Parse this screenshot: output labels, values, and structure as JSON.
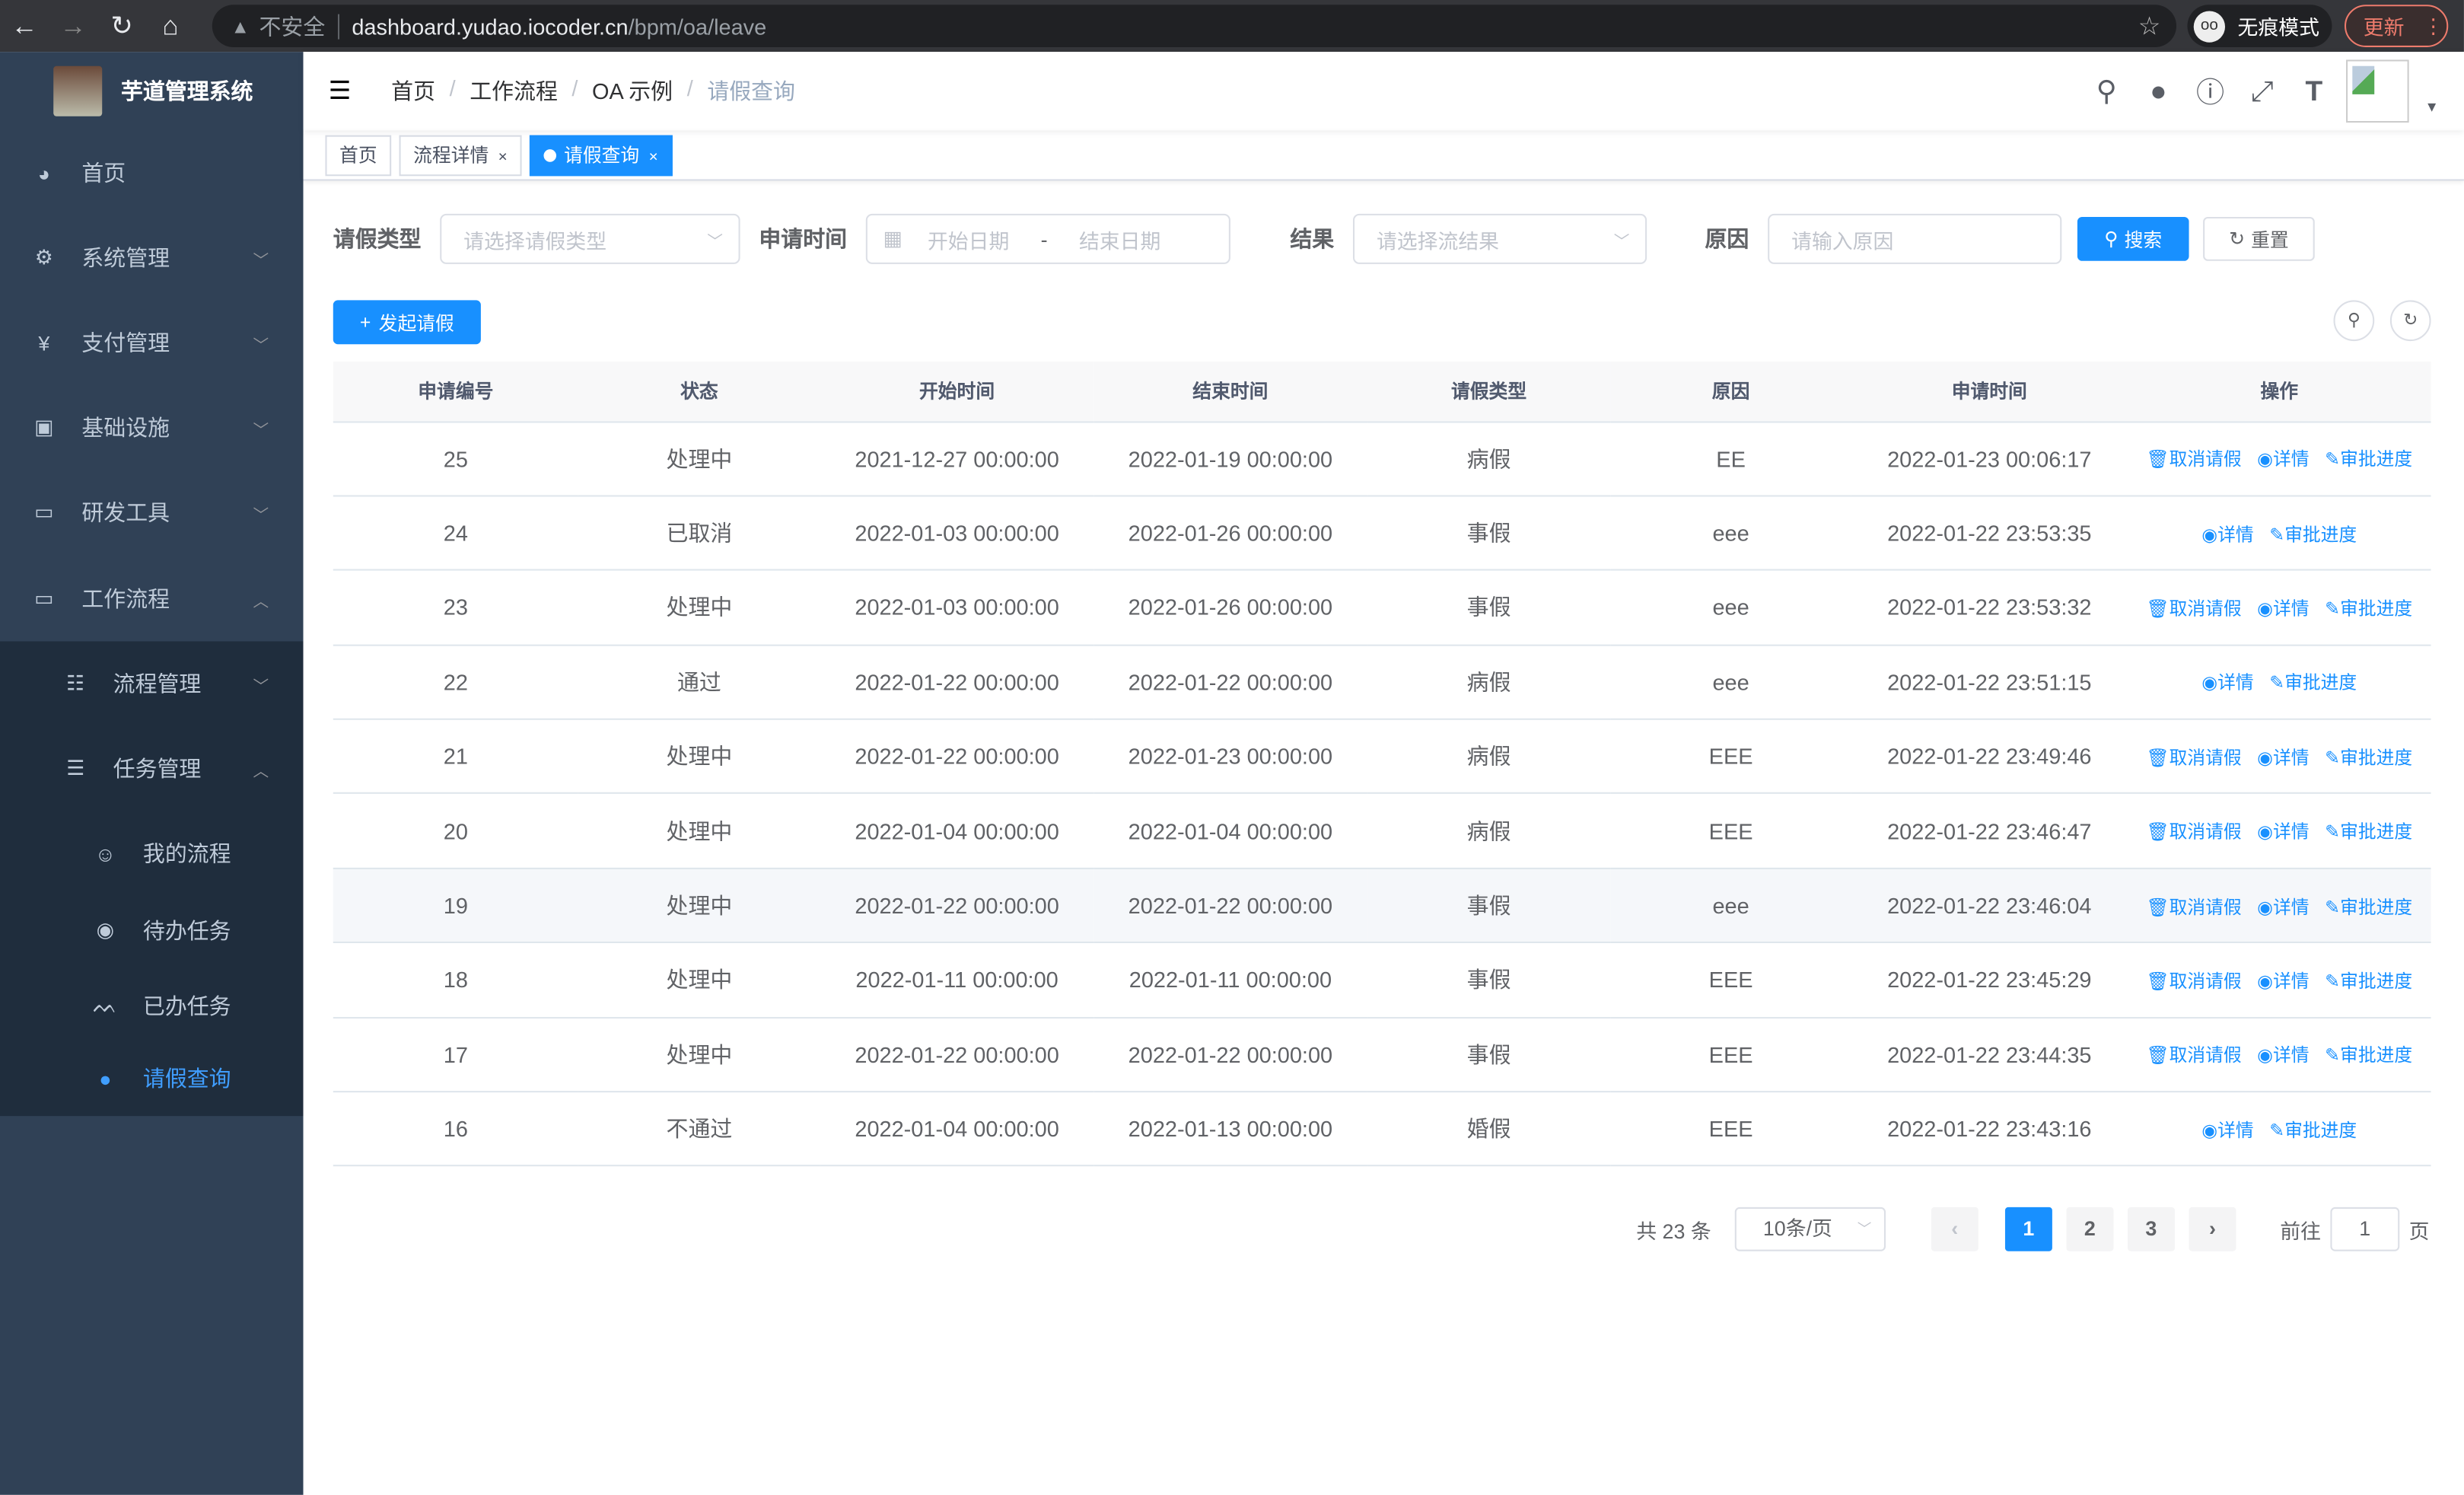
{
  "browser": {
    "not_secure": "不安全",
    "host": "dashboard.yudao.iocoder.cn",
    "path": "/bpm/oa/leave",
    "incognito": "无痕模式",
    "update": "更新"
  },
  "sidebar": {
    "title": "芋道管理系统",
    "items": [
      {
        "label": "首页",
        "icon": "dashboard-icon"
      },
      {
        "label": "系统管理",
        "icon": "gear-icon"
      },
      {
        "label": "支付管理",
        "icon": "yen-icon"
      },
      {
        "label": "基础设施",
        "icon": "monitor-icon"
      },
      {
        "label": "研发工具",
        "icon": "toolbox-icon"
      },
      {
        "label": "工作流程",
        "icon": "toolbox-icon"
      },
      {
        "label": "流程管理",
        "icon": "tree-icon"
      },
      {
        "label": "任务管理",
        "icon": "task-icon"
      },
      {
        "label": "我的流程",
        "icon": "people-icon"
      },
      {
        "label": "待办任务",
        "icon": "eye-icon"
      },
      {
        "label": "已办任务",
        "icon": "eye-closed-icon"
      },
      {
        "label": "请假查询",
        "icon": "user-icon"
      }
    ]
  },
  "breadcrumb": [
    "首页",
    "工作流程",
    "OA 示例",
    "请假查询"
  ],
  "tags": [
    "首页",
    "流程详情",
    "请假查询"
  ],
  "filters": {
    "type_label": "请假类型",
    "type_placeholder": "请选择请假类型",
    "time_label": "申请时间",
    "start_placeholder": "开始日期",
    "sep": "-",
    "end_placeholder": "结束日期",
    "result_label": "结果",
    "result_placeholder": "请选择流结果",
    "reason_label": "原因",
    "reason_placeholder": "请输入原因",
    "search": "搜索",
    "reset": "重置"
  },
  "add_button": "发起请假",
  "table": {
    "headers": [
      "申请编号",
      "状态",
      "开始时间",
      "结束时间",
      "请假类型",
      "原因",
      "申请时间",
      "操作"
    ],
    "actions": {
      "cancel": "取消请假",
      "detail": "详情",
      "progress": "审批进度"
    },
    "rows": [
      [
        "25",
        "处理中",
        "2021-12-27 00:00:00",
        "2022-01-19 00:00:00",
        "病假",
        "EE",
        "2022-01-23 00:06:17"
      ],
      [
        "24",
        "已取消",
        "2022-01-03 00:00:00",
        "2022-01-26 00:00:00",
        "事假",
        "eee",
        "2022-01-22 23:53:35"
      ],
      [
        "23",
        "处理中",
        "2022-01-03 00:00:00",
        "2022-01-26 00:00:00",
        "事假",
        "eee",
        "2022-01-22 23:53:32"
      ],
      [
        "22",
        "通过",
        "2022-01-22 00:00:00",
        "2022-01-22 00:00:00",
        "病假",
        "eee",
        "2022-01-22 23:51:15"
      ],
      [
        "21",
        "处理中",
        "2022-01-22 00:00:00",
        "2022-01-23 00:00:00",
        "病假",
        "EEE",
        "2022-01-22 23:49:46"
      ],
      [
        "20",
        "处理中",
        "2022-01-04 00:00:00",
        "2022-01-04 00:00:00",
        "病假",
        "EEE",
        "2022-01-22 23:46:47"
      ],
      [
        "19",
        "处理中",
        "2022-01-22 00:00:00",
        "2022-01-22 00:00:00",
        "事假",
        "eee",
        "2022-01-22 23:46:04"
      ],
      [
        "18",
        "处理中",
        "2022-01-11 00:00:00",
        "2022-01-11 00:00:00",
        "事假",
        "EEE",
        "2022-01-22 23:45:29"
      ],
      [
        "17",
        "处理中",
        "2022-01-22 00:00:00",
        "2022-01-22 00:00:00",
        "事假",
        "EEE",
        "2022-01-22 23:44:35"
      ],
      [
        "16",
        "不通过",
        "2022-01-04 00:00:00",
        "2022-01-13 00:00:00",
        "婚假",
        "EEE",
        "2022-01-22 23:43:16"
      ]
    ]
  },
  "pagination": {
    "total": "共 23 条",
    "page_size": "10条/页",
    "pages": [
      "1",
      "2",
      "3"
    ],
    "current": "1",
    "goto": "前往",
    "goto_value": "1",
    "page_unit": "页"
  },
  "colors": {
    "primary": "#1890ff",
    "sidebar": "#304156",
    "submenu": "#1f2d3d"
  }
}
